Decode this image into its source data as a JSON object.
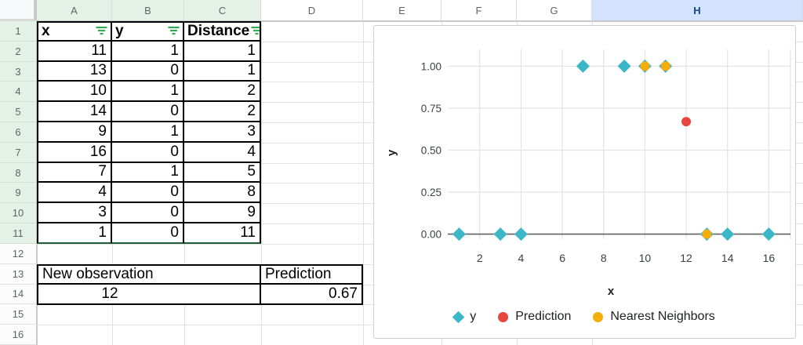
{
  "colors": {
    "series_y": "#3CB7C8",
    "series_prediction": "#E8453C",
    "series_neighbors": "#F3AE0D",
    "table_header_tint": "#E4F1E7",
    "selected_column_tint": "#D3E3FD",
    "selected_column_text": "#17438D",
    "filter_icon_green": "#34A853",
    "table_range_border": "#1E5C3A"
  },
  "spreadsheet": {
    "column_headers": [
      "A",
      "B",
      "C",
      "D",
      "E",
      "F",
      "G",
      "H"
    ],
    "table_columns": [
      "A",
      "B",
      "C"
    ],
    "selected_columns": [
      "H"
    ],
    "row_numbers": [
      1,
      2,
      3,
      4,
      5,
      6,
      7,
      8,
      9,
      10,
      11,
      12,
      13,
      14,
      15,
      16
    ],
    "table_rows_end": 11
  },
  "table": {
    "headers": [
      "x",
      "y",
      "Distance"
    ],
    "rows": [
      [
        11,
        1,
        1
      ],
      [
        13,
        0,
        1
      ],
      [
        10,
        1,
        2
      ],
      [
        14,
        0,
        2
      ],
      [
        9,
        1,
        3
      ],
      [
        16,
        0,
        4
      ],
      [
        7,
        1,
        5
      ],
      [
        4,
        0,
        8
      ],
      [
        3,
        0,
        9
      ],
      [
        1,
        0,
        11
      ]
    ]
  },
  "observation": {
    "label": "New observation",
    "value": "12",
    "prediction_label": "Prediction",
    "prediction_value": "0.67"
  },
  "chart_data": {
    "type": "scatter",
    "title": "",
    "xlabel": "x",
    "ylabel": "y",
    "xlim": [
      0.45,
      17.05
    ],
    "ylim": [
      -0.03,
      1.1
    ],
    "x_ticks": [
      2,
      4,
      6,
      8,
      10,
      12,
      14,
      16
    ],
    "y_ticks": [
      "0.00",
      "0.25",
      "0.50",
      "0.75",
      "1.00"
    ],
    "grid": true,
    "legend_position": "bottom",
    "series": [
      {
        "name": "y",
        "marker": "diamond",
        "color": "#3CB7C8",
        "points": [
          [
            11,
            1
          ],
          [
            13,
            0
          ],
          [
            10,
            1
          ],
          [
            14,
            0
          ],
          [
            9,
            1
          ],
          [
            16,
            0
          ],
          [
            7,
            1
          ],
          [
            4,
            0
          ],
          [
            3,
            0
          ],
          [
            1,
            0
          ]
        ]
      },
      {
        "name": "Prediction",
        "marker": "circle",
        "color": "#E8453C",
        "points": [
          [
            12,
            0.67
          ]
        ]
      },
      {
        "name": "Nearest Neighbors",
        "marker": "circle",
        "color": "#F3AE0D",
        "points": [
          [
            10,
            1
          ],
          [
            11,
            1
          ],
          [
            13,
            0
          ]
        ]
      }
    ]
  }
}
